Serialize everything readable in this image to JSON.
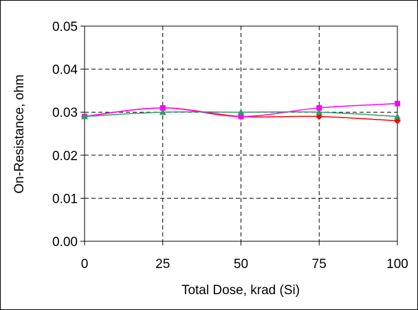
{
  "chart_data": {
    "type": "line",
    "title": "",
    "xlabel": "Total Dose, krad (Si)",
    "ylabel": "On-Resistance, ohm",
    "x": [
      0,
      25,
      50,
      75,
      100
    ],
    "xlim": [
      0,
      100
    ],
    "ylim": [
      0,
      0.05
    ],
    "x_ticks": [
      "0",
      "25",
      "50",
      "75",
      "100"
    ],
    "y_ticks": [
      "0.00",
      "0.01",
      "0.02",
      "0.03",
      "0.04",
      "0.05"
    ],
    "grid": true,
    "legend": "none",
    "smoothed": true,
    "series": [
      {
        "marker": "diamond",
        "color": "#ff0000",
        "values": [
          0.029,
          0.031,
          0.029,
          0.029,
          0.028
        ]
      },
      {
        "marker": "square",
        "color": "#ff00ff",
        "values": [
          0.029,
          0.031,
          0.029,
          0.031,
          0.032
        ]
      },
      {
        "marker": "triangle",
        "color": "#339966",
        "values": [
          0.029,
          0.03,
          0.03,
          0.03,
          0.029
        ]
      }
    ]
  }
}
